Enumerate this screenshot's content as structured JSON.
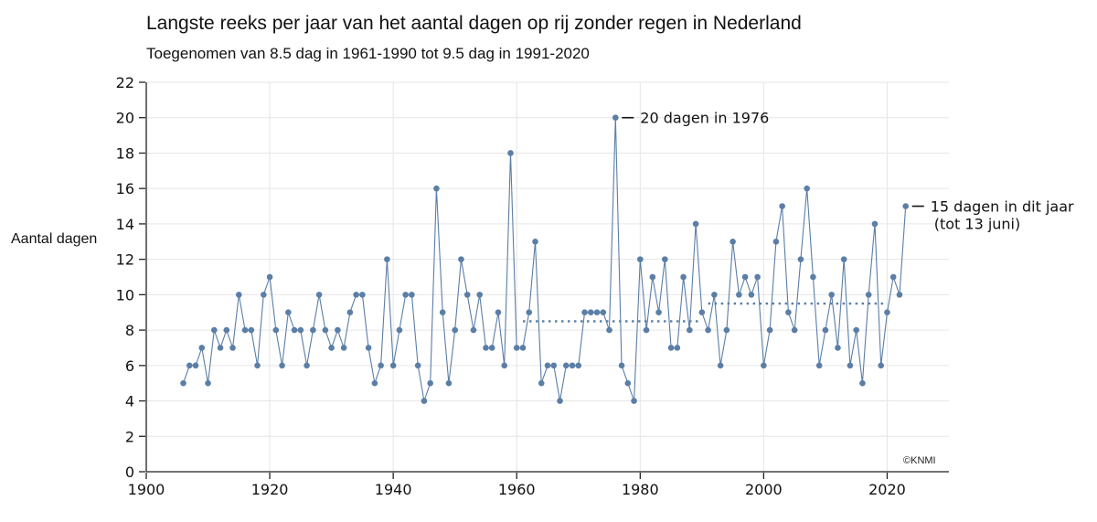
{
  "chart_data": {
    "type": "line",
    "title": "Langste reeks per jaar van het aantal dagen op rij zonder regen in Nederland",
    "subtitle": "Toegenomen van 8.5 dag in 1961-1990 tot 9.5 dag in 1991-2020",
    "xlabel": "",
    "ylabel": "Aantal dagen",
    "xlim": [
      1900,
      2030
    ],
    "ylim": [
      0,
      22
    ],
    "xticks": [
      "1900",
      "1920",
      "1940",
      "1960",
      "1980",
      "2000",
      "2020"
    ],
    "yticks": [
      "0",
      "2",
      "4",
      "6",
      "8",
      "10",
      "12",
      "14",
      "16",
      "18",
      "20",
      "22"
    ],
    "grid": true,
    "color": "#5b7ea6",
    "series": [
      {
        "x": [
          1906,
          1907,
          1908,
          1909,
          1910,
          1911,
          1912,
          1913,
          1914,
          1915,
          1916,
          1917,
          1918,
          1919,
          1920,
          1921,
          1922,
          1923,
          1924,
          1925,
          1926,
          1927,
          1928,
          1929,
          1930,
          1931,
          1932,
          1933,
          1934,
          1935,
          1936,
          1937,
          1938,
          1939,
          1940,
          1941,
          1942,
          1943,
          1944,
          1945,
          1946,
          1947,
          1948,
          1949,
          1950,
          1951,
          1952,
          1953,
          1954,
          1955,
          1956,
          1957,
          1958,
          1959,
          1960,
          1961,
          1962,
          1963,
          1964,
          1965,
          1966,
          1967,
          1968,
          1969,
          1970,
          1971,
          1972,
          1973,
          1974,
          1975,
          1976,
          1977,
          1978,
          1979,
          1980,
          1981,
          1982,
          1983,
          1984,
          1985,
          1986,
          1987,
          1988,
          1989,
          1990,
          1991,
          1992,
          1993,
          1994,
          1995,
          1996,
          1997,
          1998,
          1999,
          2000,
          2001,
          2002,
          2003,
          2004,
          2005,
          2006,
          2007,
          2008,
          2009,
          2010,
          2011,
          2012,
          2013,
          2014,
          2015,
          2016,
          2017,
          2018,
          2019,
          2020,
          2021,
          2022,
          2023
        ],
        "values": [
          5,
          6,
          6,
          7,
          5,
          8,
          7,
          8,
          7,
          10,
          8,
          8,
          6,
          10,
          11,
          8,
          6,
          9,
          8,
          8,
          6,
          8,
          10,
          8,
          7,
          8,
          7,
          9,
          10,
          10,
          7,
          5,
          6,
          12,
          6,
          8,
          10,
          10,
          6,
          4,
          5,
          16,
          9,
          5,
          8,
          12,
          10,
          8,
          10,
          7,
          7,
          9,
          6,
          18,
          7,
          7,
          9,
          13,
          5,
          6,
          6,
          4,
          6,
          6,
          6,
          9,
          9,
          9,
          9,
          8,
          20,
          6,
          5,
          4,
          12,
          8,
          11,
          9,
          12,
          7,
          7,
          11,
          8,
          14,
          9,
          8,
          10,
          6,
          8,
          13,
          10,
          11,
          10,
          11,
          6,
          8,
          13,
          15,
          9,
          8,
          12,
          16,
          11,
          6,
          8,
          10,
          7,
          12,
          6,
          8,
          5,
          10,
          14,
          6,
          9,
          11,
          10,
          15
        ]
      }
    ],
    "reference_lines": [
      {
        "x_start": 1961,
        "x_end": 1990,
        "value": 8.5
      },
      {
        "x_start": 1991,
        "x_end": 2020,
        "value": 9.5
      }
    ],
    "annotations": [
      {
        "x": 1976,
        "y": 20,
        "text": "20 dagen in 1976"
      },
      {
        "x": 2023,
        "y": 15,
        "text": "15 dagen in dit jaar",
        "text2": "(tot 13 juni)"
      }
    ],
    "credit": "©KNMI"
  }
}
